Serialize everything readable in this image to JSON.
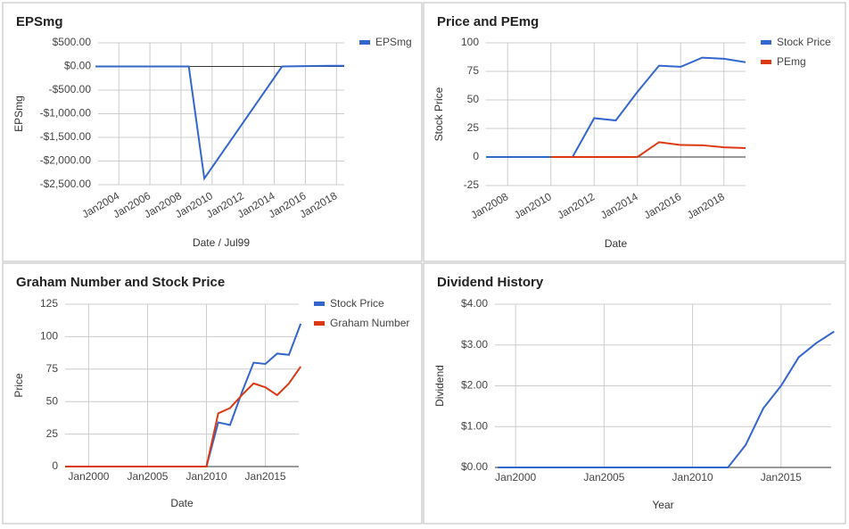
{
  "chart_data": [
    {
      "type": "line",
      "title": "EPSmg",
      "xlabel": "Date / Jul99",
      "ylabel": "EPSmg",
      "x": [
        "2002-07",
        "2003-07",
        "2004-07",
        "2005-07",
        "2006-07",
        "2007-07",
        "2008-07",
        "2009-07",
        "2014-07",
        "2015-07",
        "2016-07",
        "2017-07",
        "2018-07"
      ],
      "series": [
        {
          "name": "EPSmg",
          "color": "#3366cc",
          "values": [
            0,
            0,
            0,
            0,
            0,
            0,
            0,
            -2370,
            0,
            5,
            10,
            15,
            15
          ]
        }
      ],
      "xlim": [
        "2002-09",
        "2018-07"
      ],
      "xticks": [
        {
          "value": "2004-01",
          "label": "Jan2004"
        },
        {
          "value": "2006-01",
          "label": "Jan2006"
        },
        {
          "value": "2008-01",
          "label": "Jan2008"
        },
        {
          "value": "2010-01",
          "label": "Jan2010"
        },
        {
          "value": "2012-01",
          "label": "Jan2012"
        },
        {
          "value": "2014-01",
          "label": "Jan2014"
        },
        {
          "value": "2016-01",
          "label": "Jan2016"
        },
        {
          "value": "2018-01",
          "label": "Jan2018"
        }
      ],
      "ylim": [
        -2500,
        500
      ],
      "yticks": [
        {
          "value": 500,
          "label": "$500.00"
        },
        {
          "value": 0,
          "label": "$0.00"
        },
        {
          "value": -500,
          "label": "-$500.00"
        },
        {
          "value": -1000,
          "label": "-$1,000.00"
        },
        {
          "value": -1500,
          "label": "-$1,500.00"
        },
        {
          "value": -2000,
          "label": "-$2,000.00"
        },
        {
          "value": -2500,
          "label": "-$2,500.00"
        }
      ],
      "grid": true,
      "legend": "right"
    },
    {
      "type": "line",
      "title": "Price and PEmg",
      "xlabel": "Date",
      "ylabel": "Stock Price",
      "x": [
        "2007-01",
        "2008-01",
        "2009-01",
        "2010-01",
        "2011-01",
        "2012-01",
        "2013-01",
        "2014-01",
        "2015-01",
        "2016-01",
        "2017-01",
        "2018-01",
        "2019-01"
      ],
      "series": [
        {
          "name": "Stock Price",
          "color": "#3366cc",
          "values": [
            0,
            0,
            0,
            0,
            0,
            34,
            32,
            57,
            80,
            79,
            87,
            86,
            83
          ]
        },
        {
          "name": "PEmg",
          "color": "#dc3912",
          "values": [
            null,
            null,
            null,
            0,
            0,
            0,
            0,
            0,
            13,
            10.5,
            10.3,
            8.5,
            7.8
          ]
        }
      ],
      "xlim": [
        "2007-01",
        "2019-01"
      ],
      "xticks": [
        {
          "value": "2008-01",
          "label": "Jan2008"
        },
        {
          "value": "2010-01",
          "label": "Jan2010"
        },
        {
          "value": "2012-01",
          "label": "Jan2012"
        },
        {
          "value": "2014-01",
          "label": "Jan2014"
        },
        {
          "value": "2016-01",
          "label": "Jan2016"
        },
        {
          "value": "2018-01",
          "label": "Jan2018"
        }
      ],
      "ylim": [
        -25,
        100
      ],
      "yticks": [
        100,
        75,
        50,
        25,
        0,
        -25
      ],
      "grid": true,
      "legend": "right"
    },
    {
      "type": "line",
      "title": "Graham Number and Stock Price",
      "xlabel": "Date",
      "ylabel": "Price",
      "x": [
        "1998-01",
        "1999-01",
        "2000-01",
        "2001-01",
        "2002-01",
        "2003-01",
        "2004-01",
        "2005-01",
        "2006-01",
        "2007-01",
        "2008-01",
        "2009-01",
        "2010-01",
        "2011-01",
        "2012-01",
        "2013-01",
        "2014-01",
        "2015-01",
        "2016-01",
        "2017-01",
        "2018-01"
      ],
      "series": [
        {
          "name": "Stock Price",
          "color": "#3366cc",
          "values": [
            0,
            0,
            0,
            0,
            0,
            0,
            0,
            0,
            0,
            0,
            0,
            0,
            0,
            34,
            32,
            57,
            80,
            79,
            87,
            86,
            110
          ]
        },
        {
          "name": "Graham Number",
          "color": "#dc3912",
          "values": [
            0,
            0,
            0,
            0,
            0,
            0,
            0,
            0,
            0,
            0,
            0,
            0,
            0,
            41,
            45,
            55,
            64,
            61,
            55,
            64,
            77
          ]
        }
      ],
      "xlim": [
        "1998-01",
        "2017-11"
      ],
      "xticks": [
        {
          "value": "2000-01",
          "label": "Jan2000"
        },
        {
          "value": "2005-01",
          "label": "Jan2005"
        },
        {
          "value": "2010-01",
          "label": "Jan2010"
        },
        {
          "value": "2015-01",
          "label": "Jan2015"
        }
      ],
      "ylim": [
        0,
        125
      ],
      "yticks": [
        125,
        100,
        75,
        50,
        25,
        0
      ],
      "grid": true,
      "legend": "right"
    },
    {
      "type": "line",
      "title": "Dividend History",
      "xlabel": "Year",
      "ylabel": "Dividend",
      "x": [
        "1999-01",
        "2000-01",
        "2001-01",
        "2002-01",
        "2003-01",
        "2004-01",
        "2005-01",
        "2006-01",
        "2007-01",
        "2008-01",
        "2009-01",
        "2010-01",
        "2011-01",
        "2012-01",
        "2013-01",
        "2014-01",
        "2015-01",
        "2016-01",
        "2017-01",
        "2018-01"
      ],
      "values": [
        0,
        0,
        0,
        0,
        0,
        0,
        0,
        0,
        0,
        0,
        0,
        0,
        0,
        0,
        0.55,
        1.45,
        2.0,
        2.7,
        3.05,
        3.33
      ],
      "color": "#3366cc",
      "xlim": [
        "1998-11",
        "2017-11"
      ],
      "xticks": [
        {
          "value": "2000-01",
          "label": "Jan2000"
        },
        {
          "value": "2005-01",
          "label": "Jan2005"
        },
        {
          "value": "2010-01",
          "label": "Jan2010"
        },
        {
          "value": "2015-01",
          "label": "Jan2015"
        }
      ],
      "ylim": [
        0,
        4
      ],
      "yticks": [
        {
          "value": 4,
          "label": "$4.00"
        },
        {
          "value": 3,
          "label": "$3.00"
        },
        {
          "value": 2,
          "label": "$2.00"
        },
        {
          "value": 1,
          "label": "$1.00"
        },
        {
          "value": 0,
          "label": "$0.00"
        }
      ],
      "grid": true
    }
  ]
}
